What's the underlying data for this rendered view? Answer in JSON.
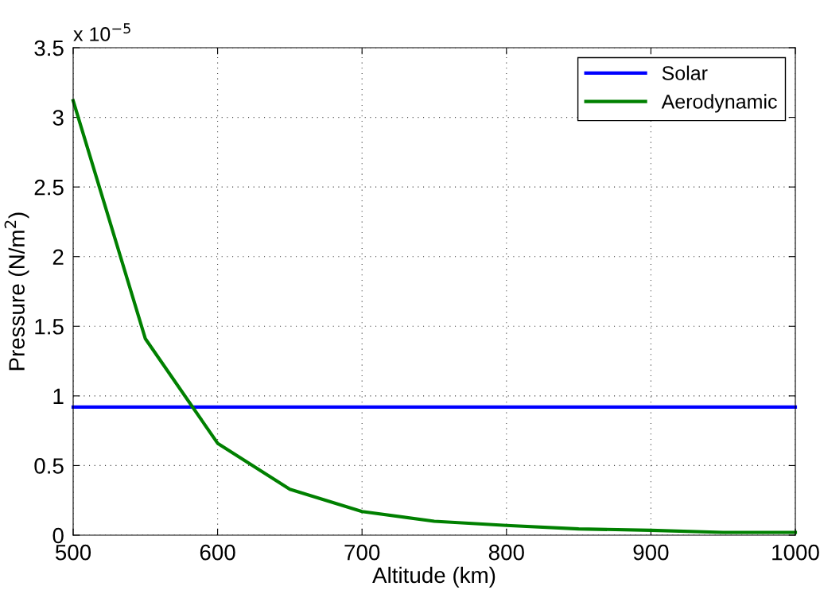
{
  "chart_data": {
    "type": "line",
    "xlabel": "Altitude (km)",
    "ylabel": "Pressure (N/m$^{2}$)",
    "annotations": [
      "x 10$^{−5}$"
    ],
    "x": [
      500,
      550,
      600,
      650,
      700,
      750,
      800,
      850,
      900,
      950,
      1000
    ],
    "series": [
      {
        "name": "Solar",
        "color": "#0000ff",
        "x": [
          500,
          1000
        ],
        "values": [
          0.92,
          0.92
        ]
      },
      {
        "name": "Aerodynamic",
        "color": "#008000",
        "values": [
          3.12,
          1.41,
          0.66,
          0.33,
          0.17,
          0.1,
          0.07,
          0.045,
          0.035,
          0.02,
          0.02
        ]
      }
    ],
    "xlim": [
      500,
      1000
    ],
    "xticks": [
      500,
      600,
      700,
      800,
      900,
      1000
    ],
    "ylim": [
      0,
      3.5
    ],
    "yticks": [
      0,
      0.5,
      1,
      1.5,
      2,
      2.5,
      3,
      3.5
    ],
    "grid": true,
    "legend": "top right",
    "marker": "none",
    "line_style": "solid"
  }
}
